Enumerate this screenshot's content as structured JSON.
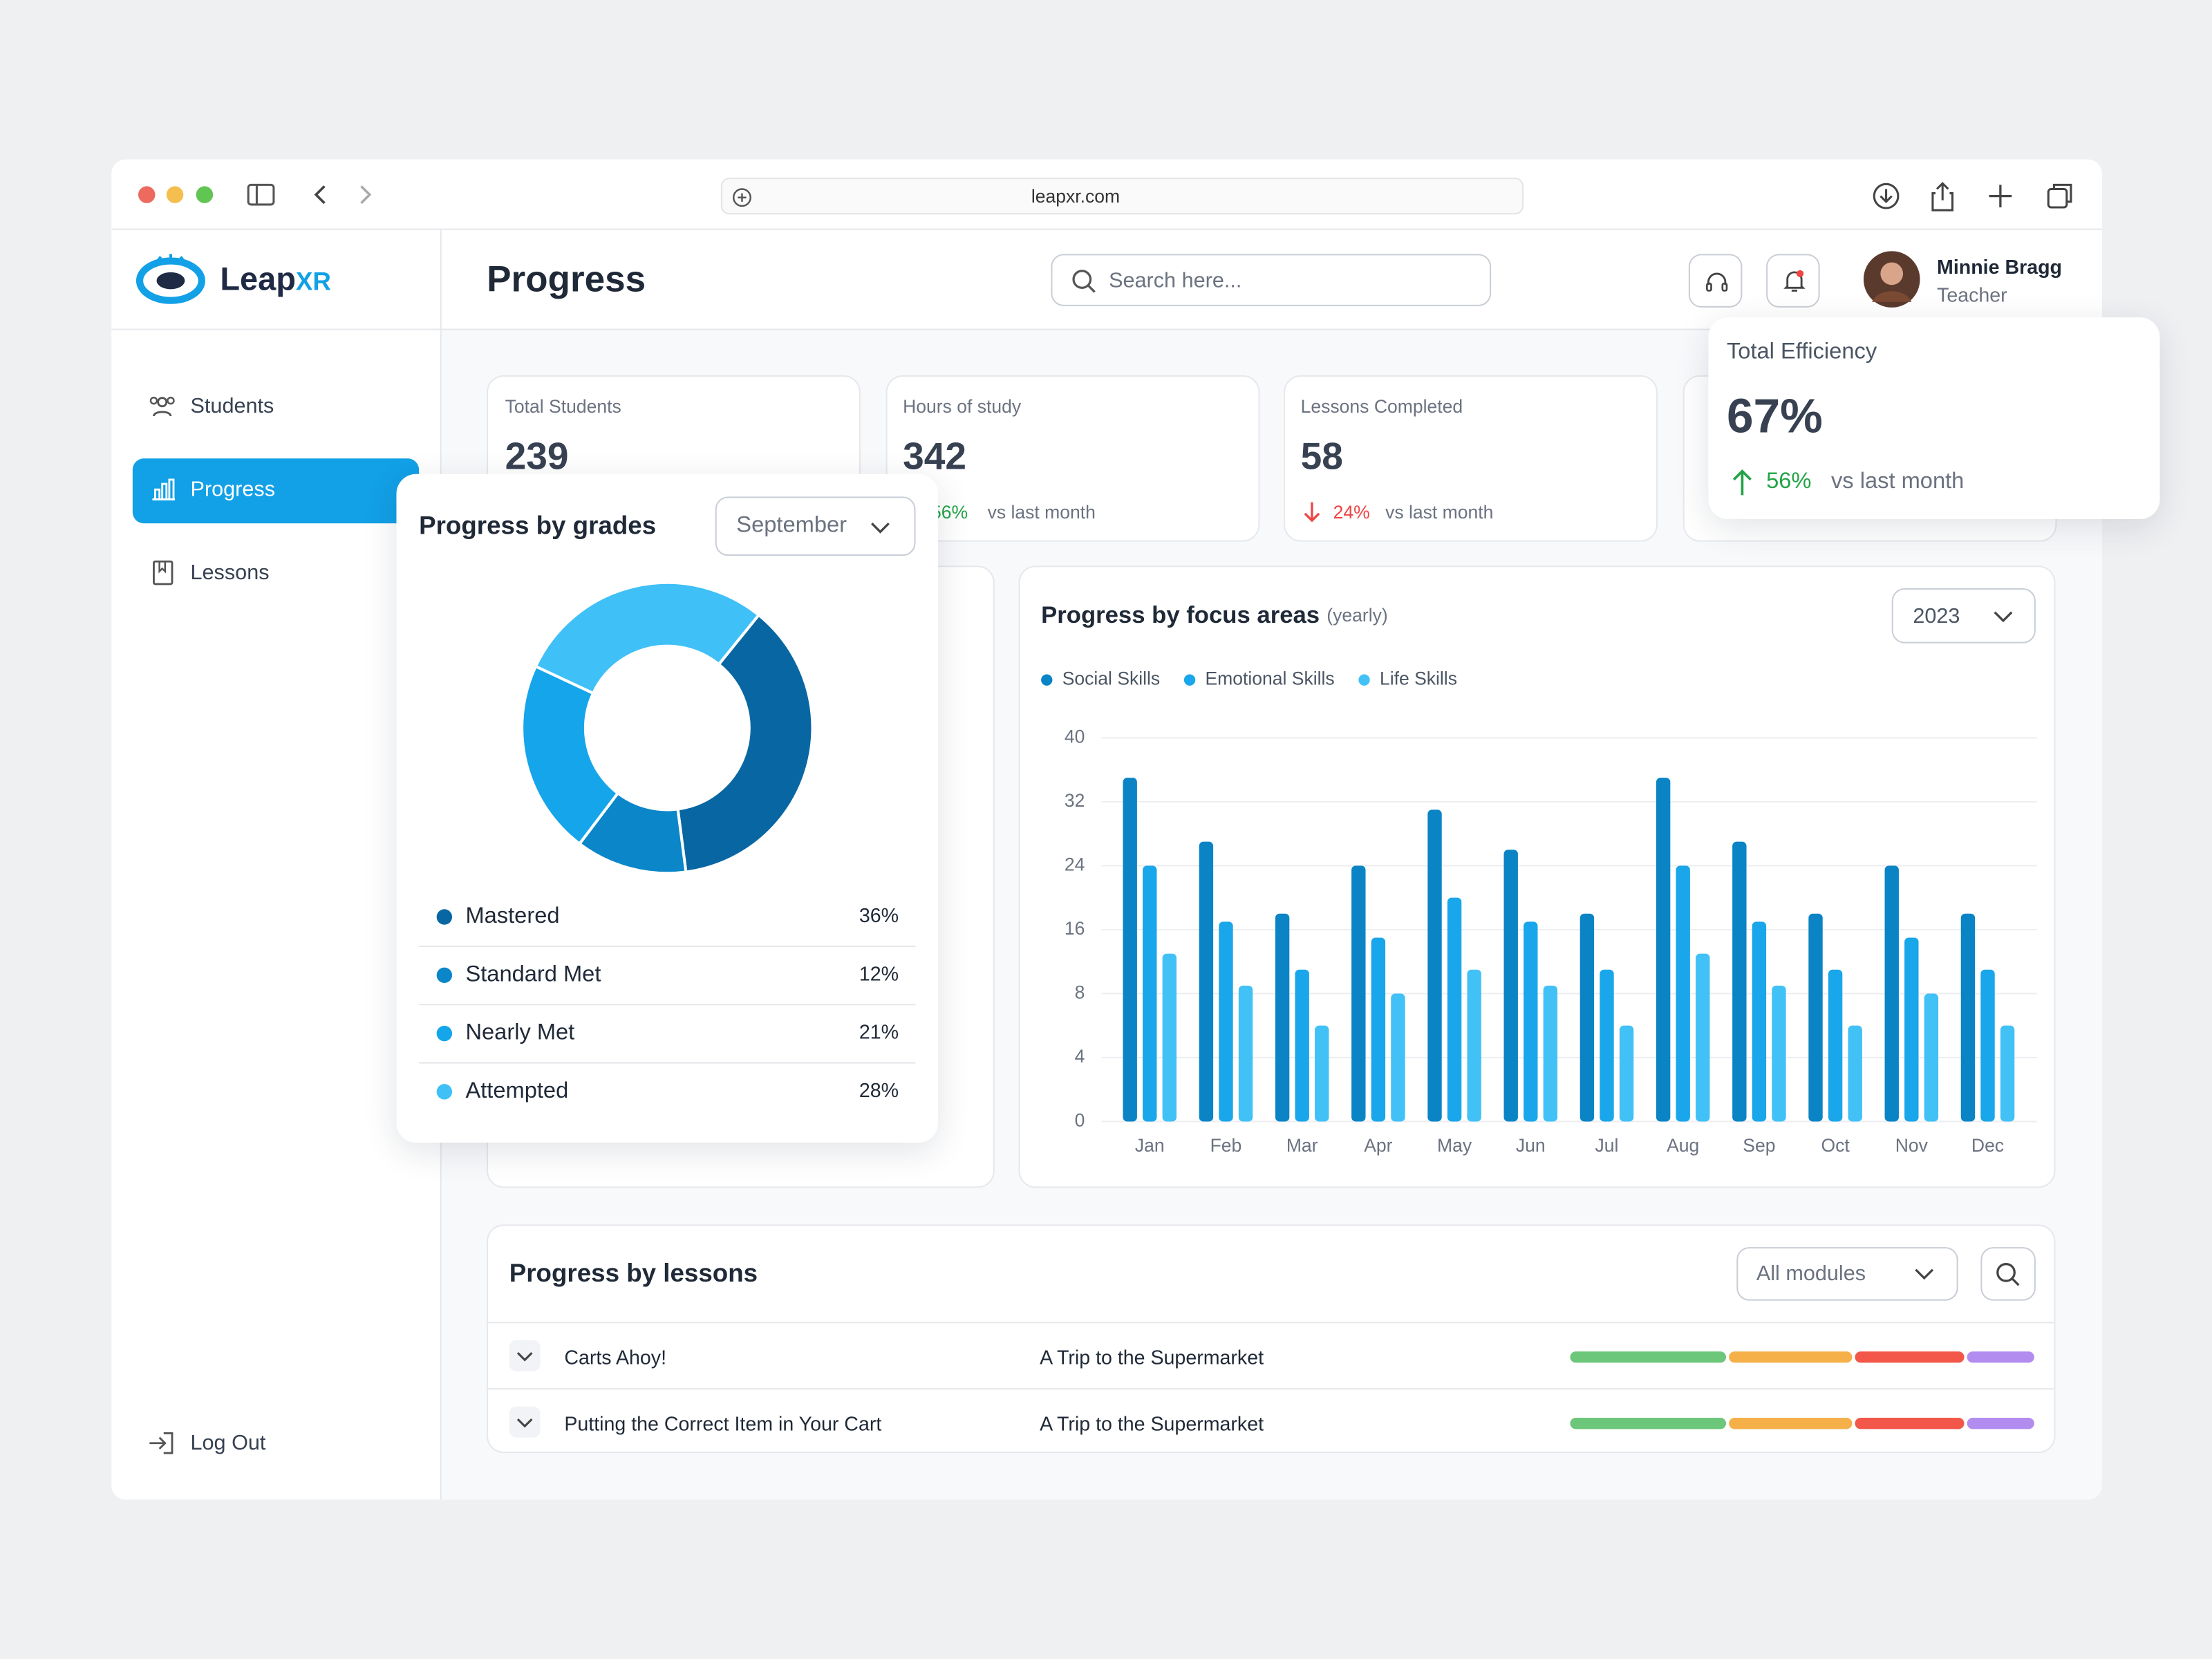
{
  "browser": {
    "url": "leapxr.com"
  },
  "brand": {
    "name": "Leap",
    "accent": "XR"
  },
  "nav": {
    "items": [
      "Students",
      "Progress",
      "Lessons"
    ],
    "logout": "Log Out"
  },
  "header": {
    "title": "Progress",
    "search_placeholder": "Search here...",
    "user": {
      "name": "Minnie Bragg",
      "role": "Teacher"
    }
  },
  "stats": [
    {
      "label": "Total Students",
      "value": "239"
    },
    {
      "label": "Hours of study",
      "value": "342",
      "change": "56%",
      "note": "vs last month"
    },
    {
      "label": "Lessons Completed",
      "value": "58",
      "change": "24%",
      "note": "vs last month"
    }
  ],
  "efficiency": {
    "label": "Total Efficiency",
    "value": "67%",
    "change": "56%",
    "note": "vs last month"
  },
  "chart_data": [
    {
      "type": "pie",
      "title": "Progress by grades",
      "filter": "September",
      "categories": [
        "Mastered",
        "Standard Met",
        "Nearly Met",
        "Attempted"
      ],
      "values": [
        36,
        12,
        21,
        28
      ],
      "value_labels": [
        "36%",
        "12%",
        "21%",
        "28%"
      ],
      "colors": [
        "#0867a3",
        "#0a86c9",
        "#15a5ea",
        "#3fc0f7"
      ],
      "hole": true
    },
    {
      "type": "bar",
      "title": "Progress by focus areas",
      "subtitle": "(yearly)",
      "filter": "2023",
      "categories": [
        "Jan",
        "Feb",
        "Mar",
        "Apr",
        "May",
        "Jun",
        "Jul",
        "Aug",
        "Sep",
        "Oct",
        "Nov",
        "Dec"
      ],
      "series": [
        {
          "name": "Social Skills",
          "color": "#0b84c6",
          "values": [
            35,
            27,
            18,
            24,
            31,
            26,
            18,
            35,
            27,
            18,
            24,
            18
          ]
        },
        {
          "name": "Emotional Skills",
          "color": "#19a6ea",
          "values": [
            24,
            17,
            11,
            15,
            20,
            17,
            11,
            24,
            17,
            11,
            15,
            11
          ]
        },
        {
          "name": "Life Skills",
          "color": "#42c1f6",
          "values": [
            13,
            9,
            6,
            8,
            11,
            9,
            6,
            13,
            9,
            6,
            8,
            6
          ]
        }
      ],
      "ylim": [
        0,
        40
      ],
      "yticks": [
        0,
        4,
        8,
        16,
        24,
        32,
        40
      ],
      "grid": true
    }
  ],
  "lessons": {
    "title": "Progress by lessons",
    "filter": "All modules",
    "segment_colors": [
      "#6cc77a",
      "#f5b04a",
      "#f2574a",
      "#b38cf0"
    ],
    "rows": [
      {
        "name": "Carts Ahoy!",
        "module": "A Trip to the Supermarket",
        "segments": [
          34,
          27,
          24,
          15
        ]
      },
      {
        "name": "Putting the Correct Item in Your Cart",
        "module": "A Trip to the Supermarket",
        "segments": [
          34,
          27,
          24,
          15
        ]
      }
    ]
  }
}
